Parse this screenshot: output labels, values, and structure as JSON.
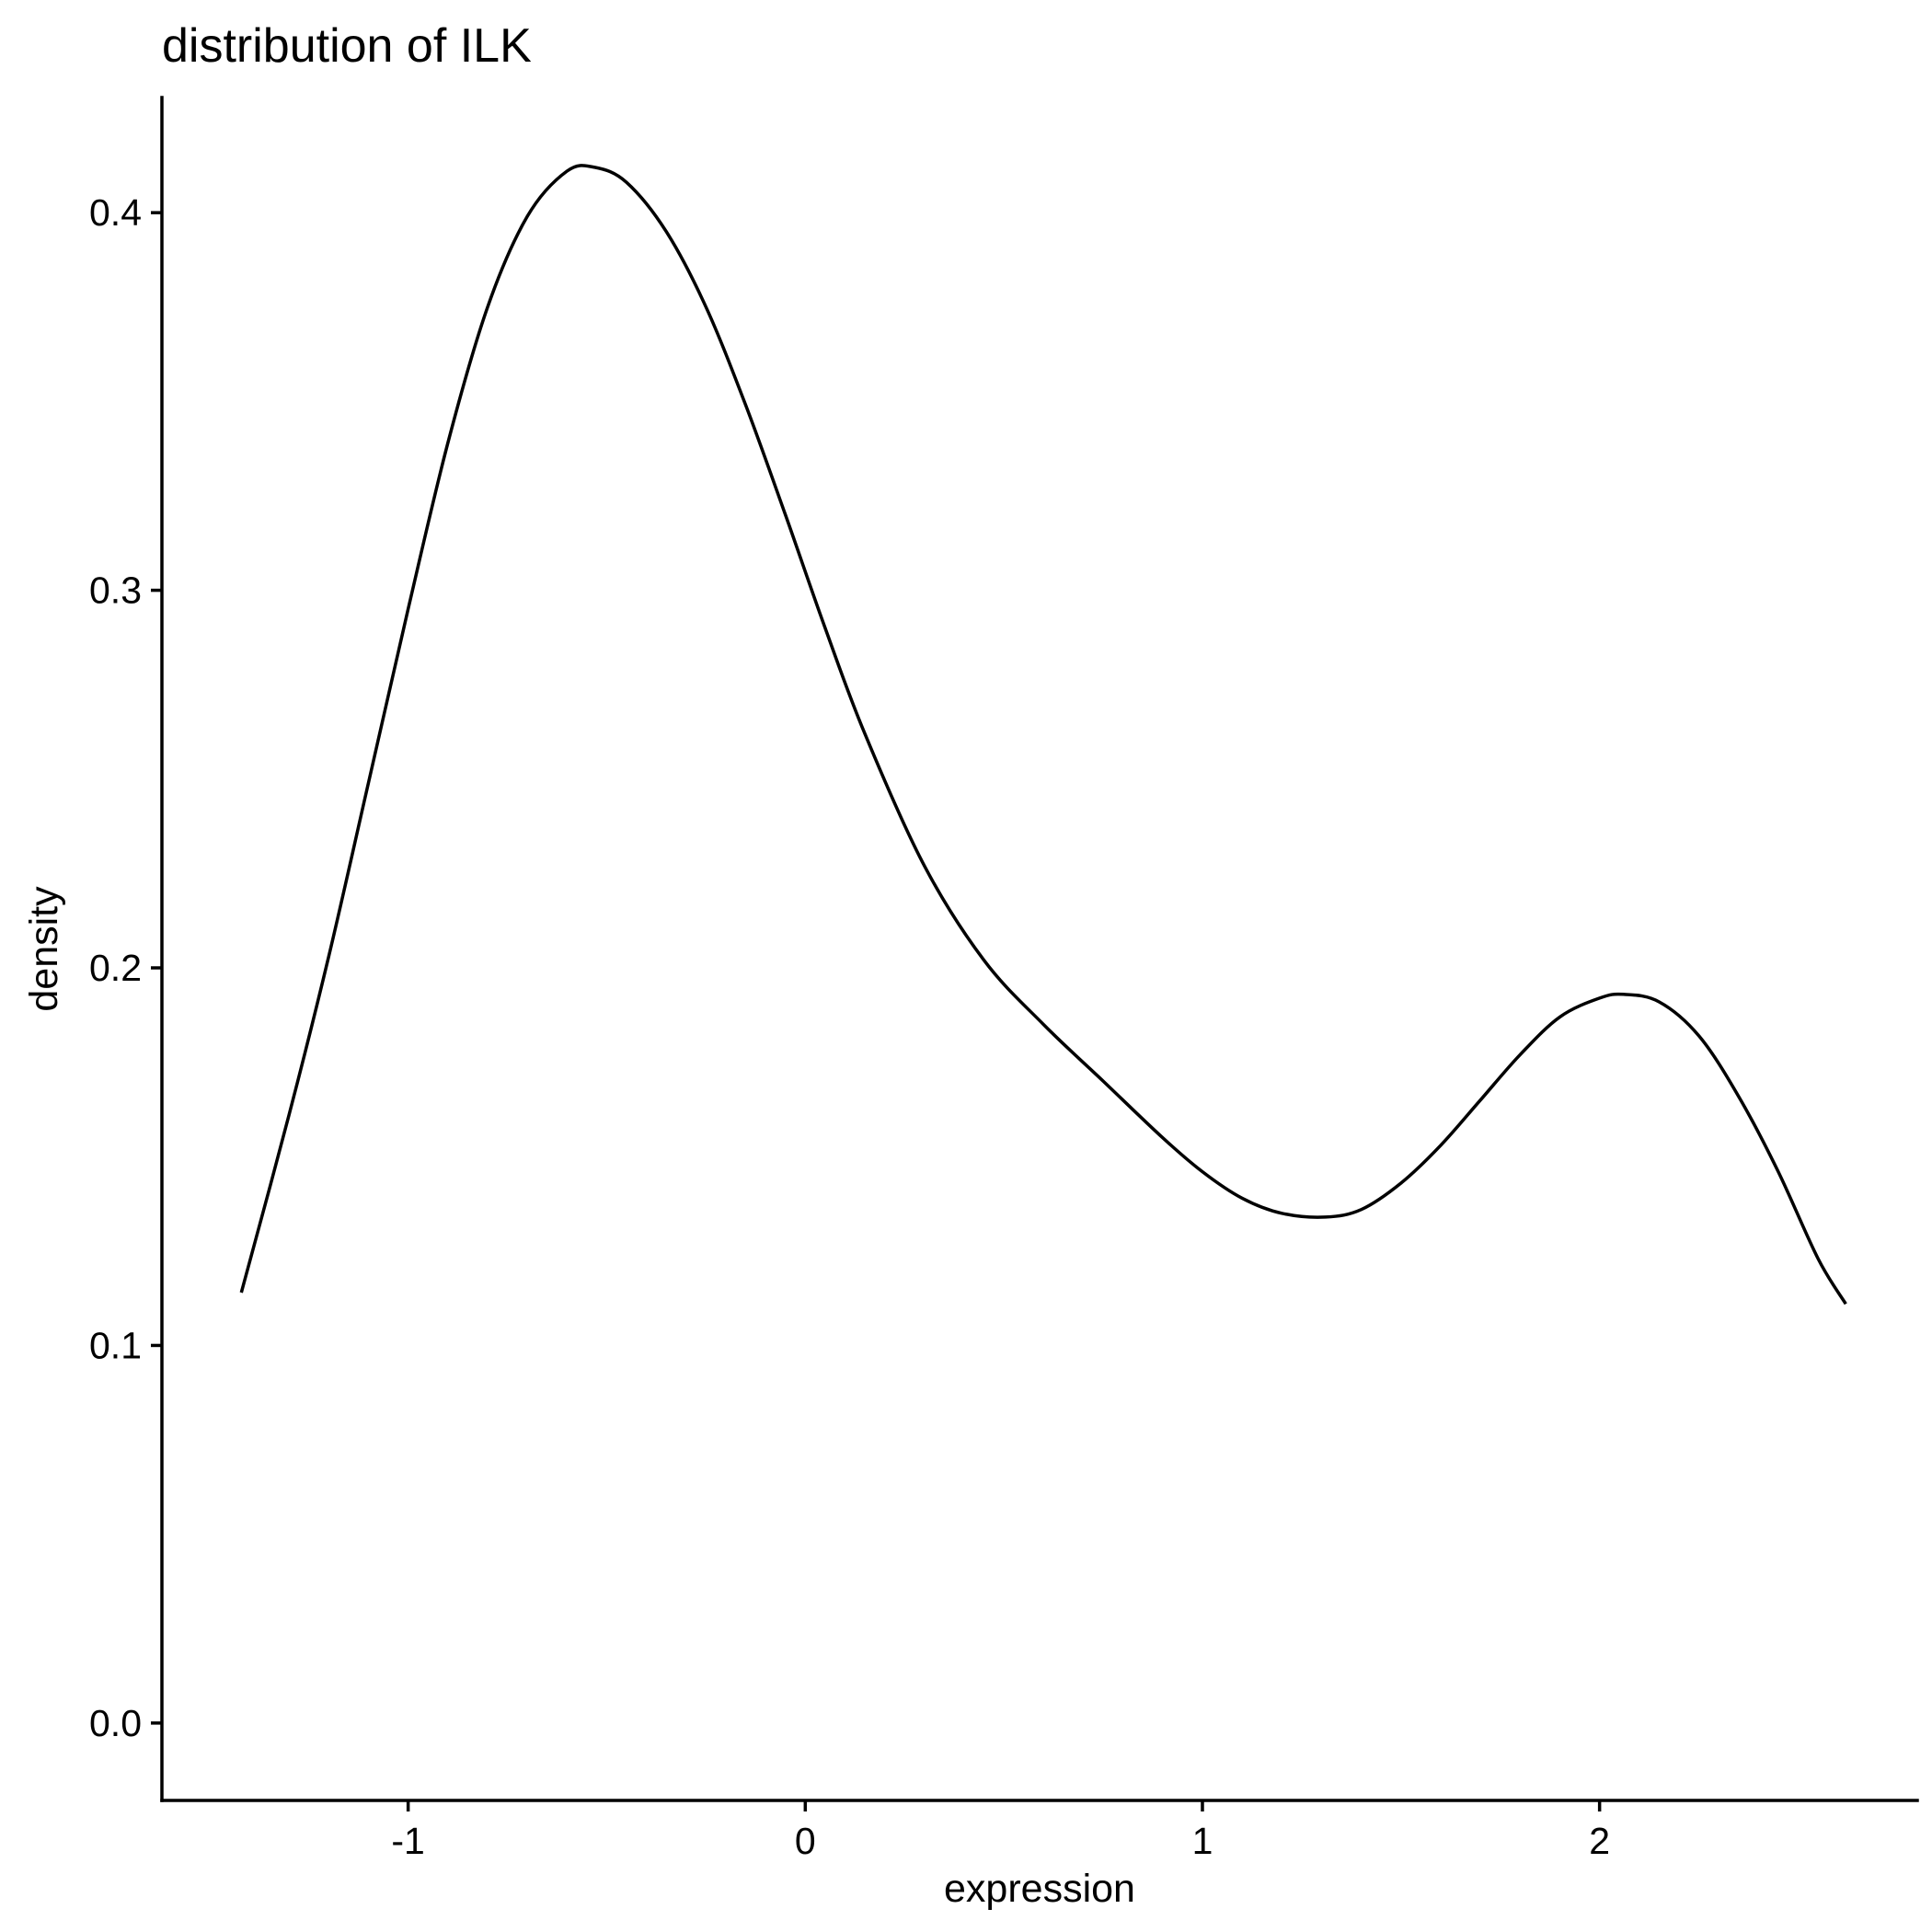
{
  "chart_data": {
    "type": "line",
    "title": "distribution of ILK",
    "xlabel": "expression",
    "ylabel": "density",
    "xlim": [
      -1.62,
      2.8
    ],
    "ylim": [
      -0.0205,
      0.4305
    ],
    "xticks": [
      -1,
      0,
      1,
      2
    ],
    "xtick_labels": [
      "-1",
      "0",
      "1",
      "2"
    ],
    "yticks": [
      0.0,
      0.1,
      0.2,
      0.3,
      0.4
    ],
    "ytick_labels": [
      "0.0",
      "0.1",
      "0.2",
      "0.3",
      "0.4"
    ],
    "grid": false,
    "legend": "none",
    "line_color": "#000000",
    "series": [
      {
        "x": [
          -1.42,
          -1.3,
          -1.2,
          -1.1,
          -1.0,
          -0.9,
          -0.8,
          -0.7,
          -0.6,
          -0.53,
          -0.45,
          -0.35,
          -0.25,
          -0.15,
          -0.05,
          0.05,
          0.15,
          0.3,
          0.45,
          0.6,
          0.75,
          0.9,
          1.0,
          1.1,
          1.2,
          1.31,
          1.4,
          1.5,
          1.6,
          1.7,
          1.8,
          1.9,
          2.0,
          2.06,
          2.15,
          2.25,
          2.35,
          2.45,
          2.55,
          2.62
        ],
        "y": [
          0.114,
          0.161,
          0.203,
          0.249,
          0.295,
          0.339,
          0.375,
          0.399,
          0.411,
          0.412,
          0.408,
          0.395,
          0.375,
          0.349,
          0.32,
          0.29,
          0.262,
          0.227,
          0.202,
          0.185,
          0.17,
          0.155,
          0.146,
          0.139,
          0.135,
          0.134,
          0.136,
          0.143,
          0.153,
          0.165,
          0.177,
          0.187,
          0.192,
          0.193,
          0.191,
          0.182,
          0.166,
          0.146,
          0.123,
          0.111
        ]
      }
    ]
  }
}
